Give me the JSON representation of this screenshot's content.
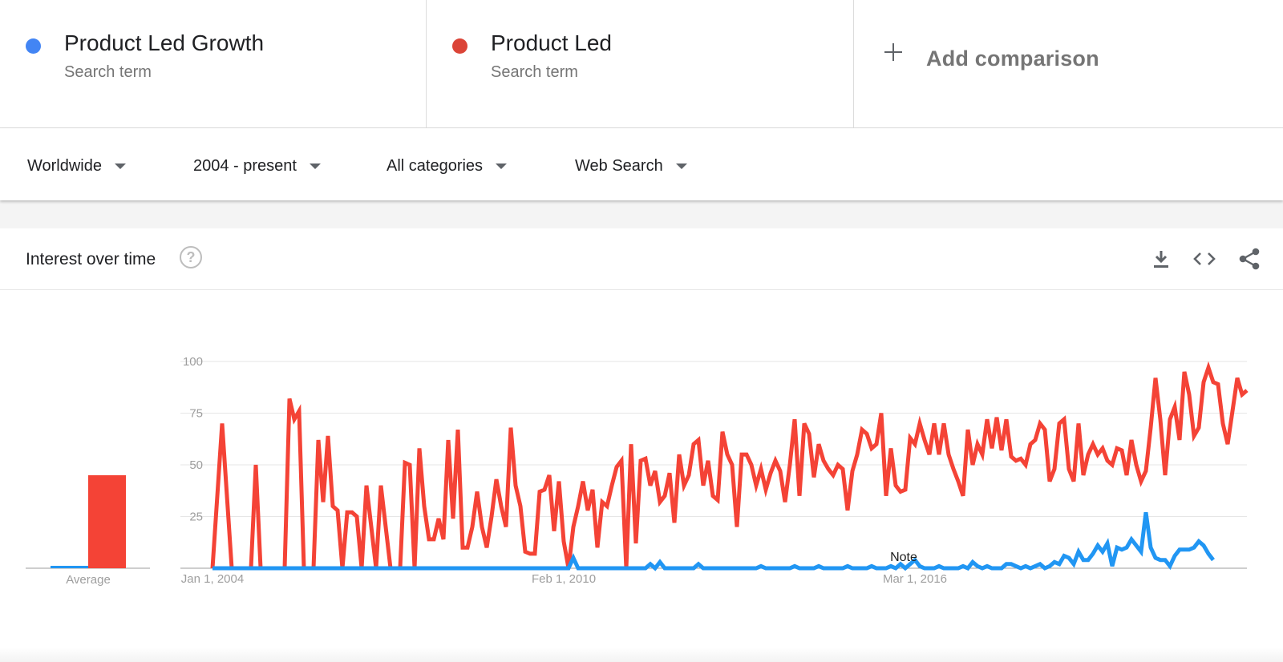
{
  "terms": [
    {
      "name": "Product Led Growth",
      "subtitle": "Search term",
      "color": "#4285F4"
    },
    {
      "name": "Product Led",
      "subtitle": "Search term",
      "color": "#DB4437"
    }
  ],
  "add_comparison": {
    "label": "Add comparison",
    "icon": "plus-icon"
  },
  "filters": {
    "region": "Worldwide",
    "time": "2004 - present",
    "category": "All categories",
    "search_type": "Web Search"
  },
  "card": {
    "title": "Interest over time",
    "help_glyph": "?",
    "actions": [
      "download-icon",
      "embed-code-icon",
      "share-icon"
    ]
  },
  "chart_data": {
    "type": "line",
    "ylim": [
      0,
      100
    ],
    "yticks": [
      "100",
      "75",
      "50",
      "25"
    ],
    "xtick_labels": [
      "Jan 1, 2004",
      "Feb 1, 2010",
      "Mar 1, 2016"
    ],
    "xticks_month_index": [
      0,
      73,
      146
    ],
    "months": 216,
    "grid": true,
    "annotation": {
      "label": "Note",
      "month_index": 144
    },
    "average": {
      "label": "Average",
      "values": [
        1,
        45
      ]
    },
    "series": [
      {
        "name": "Product Led",
        "color": "#F44336",
        "points": [
          [
            0,
            0
          ],
          [
            2,
            70
          ],
          [
            4,
            0
          ],
          [
            5,
            0
          ],
          [
            6,
            0
          ],
          [
            7,
            0
          ],
          [
            8,
            0
          ],
          [
            9,
            50
          ],
          [
            10,
            0
          ],
          [
            11,
            0
          ],
          [
            12,
            0
          ],
          [
            13,
            0
          ],
          [
            14,
            0
          ],
          [
            15,
            0
          ],
          [
            16,
            82
          ],
          [
            17,
            72
          ],
          [
            18,
            76
          ],
          [
            19,
            0
          ],
          [
            20,
            0
          ],
          [
            21,
            0
          ],
          [
            22,
            62
          ],
          [
            23,
            32
          ],
          [
            24,
            64
          ],
          [
            25,
            30
          ],
          [
            26,
            28
          ],
          [
            27,
            0
          ],
          [
            28,
            27
          ],
          [
            29,
            27
          ],
          [
            30,
            25
          ],
          [
            31,
            0
          ],
          [
            32,
            40
          ],
          [
            33,
            20
          ],
          [
            34,
            0
          ],
          [
            35,
            40
          ],
          [
            36,
            20
          ],
          [
            37,
            0
          ],
          [
            38,
            0
          ],
          [
            39,
            0
          ],
          [
            40,
            51
          ],
          [
            41,
            50
          ],
          [
            42,
            0
          ],
          [
            43,
            58
          ],
          [
            44,
            30
          ],
          [
            45,
            14
          ],
          [
            46,
            14
          ],
          [
            47,
            24
          ],
          [
            48,
            14
          ],
          [
            49,
            62
          ],
          [
            50,
            24
          ],
          [
            51,
            67
          ],
          [
            52,
            10
          ],
          [
            53,
            10
          ],
          [
            54,
            20
          ],
          [
            55,
            37
          ],
          [
            56,
            20
          ],
          [
            57,
            10
          ],
          [
            58,
            25
          ],
          [
            59,
            43
          ],
          [
            60,
            30
          ],
          [
            61,
            20
          ],
          [
            62,
            68
          ],
          [
            63,
            40
          ],
          [
            64,
            30
          ],
          [
            65,
            8
          ],
          [
            66,
            7
          ],
          [
            67,
            7
          ],
          [
            68,
            37
          ],
          [
            69,
            38
          ],
          [
            70,
            45
          ],
          [
            71,
            18
          ],
          [
            72,
            42
          ],
          [
            73,
            13
          ],
          [
            74,
            0
          ],
          [
            75,
            20
          ],
          [
            76,
            30
          ],
          [
            77,
            42
          ],
          [
            78,
            28
          ],
          [
            79,
            38
          ],
          [
            80,
            10
          ],
          [
            81,
            32
          ],
          [
            82,
            30
          ],
          [
            83,
            40
          ],
          [
            84,
            49
          ],
          [
            85,
            52
          ],
          [
            86,
            0
          ],
          [
            87,
            60
          ],
          [
            88,
            12
          ],
          [
            89,
            52
          ],
          [
            90,
            53
          ],
          [
            91,
            40
          ],
          [
            92,
            47
          ],
          [
            93,
            32
          ],
          [
            94,
            35
          ],
          [
            95,
            46
          ],
          [
            96,
            22
          ],
          [
            97,
            55
          ],
          [
            98,
            40
          ],
          [
            99,
            45
          ],
          [
            100,
            60
          ],
          [
            101,
            62
          ],
          [
            102,
            40
          ],
          [
            103,
            52
          ],
          [
            104,
            35
          ],
          [
            105,
            33
          ],
          [
            106,
            66
          ],
          [
            107,
            55
          ],
          [
            108,
            50
          ],
          [
            109,
            20
          ],
          [
            110,
            55
          ],
          [
            111,
            55
          ],
          [
            112,
            50
          ],
          [
            113,
            40
          ],
          [
            114,
            48
          ],
          [
            115,
            38
          ],
          [
            116,
            46
          ],
          [
            117,
            52
          ],
          [
            118,
            47
          ],
          [
            119,
            32
          ],
          [
            120,
            50
          ],
          [
            121,
            72
          ],
          [
            122,
            35
          ],
          [
            123,
            70
          ],
          [
            124,
            65
          ],
          [
            125,
            44
          ],
          [
            126,
            60
          ],
          [
            127,
            52
          ],
          [
            128,
            48
          ],
          [
            129,
            45
          ],
          [
            130,
            50
          ],
          [
            131,
            48
          ],
          [
            132,
            28
          ],
          [
            133,
            47
          ],
          [
            134,
            55
          ],
          [
            135,
            67
          ],
          [
            136,
            65
          ],
          [
            137,
            58
          ],
          [
            138,
            60
          ],
          [
            139,
            75
          ],
          [
            140,
            35
          ],
          [
            141,
            58
          ],
          [
            142,
            40
          ],
          [
            143,
            37
          ],
          [
            144,
            38
          ],
          [
            145,
            63
          ],
          [
            146,
            60
          ],
          [
            147,
            70
          ],
          [
            148,
            62
          ],
          [
            149,
            55
          ],
          [
            150,
            70
          ],
          [
            151,
            55
          ],
          [
            152,
            70
          ],
          [
            153,
            55
          ],
          [
            154,
            48
          ],
          [
            155,
            42
          ],
          [
            156,
            35
          ],
          [
            157,
            67
          ],
          [
            158,
            50
          ],
          [
            159,
            60
          ],
          [
            160,
            55
          ],
          [
            161,
            72
          ],
          [
            162,
            58
          ],
          [
            163,
            73
          ],
          [
            164,
            57
          ],
          [
            165,
            72
          ],
          [
            166,
            54
          ],
          [
            167,
            52
          ],
          [
            168,
            53
          ],
          [
            169,
            50
          ],
          [
            170,
            60
          ],
          [
            171,
            62
          ],
          [
            172,
            70
          ],
          [
            173,
            67
          ],
          [
            174,
            42
          ],
          [
            175,
            48
          ],
          [
            176,
            70
          ],
          [
            177,
            72
          ],
          [
            178,
            48
          ],
          [
            179,
            42
          ],
          [
            180,
            70
          ],
          [
            181,
            45
          ],
          [
            182,
            55
          ],
          [
            183,
            60
          ],
          [
            184,
            55
          ],
          [
            185,
            58
          ],
          [
            186,
            52
          ],
          [
            187,
            50
          ],
          [
            188,
            58
          ],
          [
            189,
            57
          ],
          [
            190,
            45
          ],
          [
            191,
            62
          ],
          [
            192,
            50
          ],
          [
            193,
            42
          ],
          [
            194,
            47
          ],
          [
            195,
            68
          ],
          [
            196,
            92
          ],
          [
            197,
            72
          ],
          [
            198,
            45
          ],
          [
            199,
            72
          ],
          [
            200,
            78
          ],
          [
            201,
            62
          ],
          [
            202,
            95
          ],
          [
            203,
            84
          ],
          [
            204,
            64
          ],
          [
            205,
            68
          ],
          [
            206,
            90
          ],
          [
            207,
            97
          ],
          [
            208,
            90
          ],
          [
            209,
            89
          ],
          [
            210,
            70
          ],
          [
            211,
            60
          ],
          [
            212,
            76
          ],
          [
            213,
            92
          ],
          [
            214,
            84
          ],
          [
            215,
            86
          ]
        ]
      },
      {
        "name": "Product Led Growth",
        "color": "#2196F3",
        "points": [
          [
            0,
            0
          ],
          [
            74,
            0
          ],
          [
            75,
            5
          ],
          [
            76,
            0
          ],
          [
            90,
            0
          ],
          [
            91,
            2
          ],
          [
            92,
            0
          ],
          [
            93,
            3
          ],
          [
            94,
            0
          ],
          [
            100,
            0
          ],
          [
            101,
            2
          ],
          [
            102,
            0
          ],
          [
            113,
            0
          ],
          [
            114,
            1
          ],
          [
            115,
            0
          ],
          [
            120,
            0
          ],
          [
            121,
            1
          ],
          [
            122,
            0
          ],
          [
            125,
            0
          ],
          [
            126,
            1
          ],
          [
            127,
            0
          ],
          [
            131,
            0
          ],
          [
            132,
            1
          ],
          [
            133,
            0
          ],
          [
            136,
            0
          ],
          [
            137,
            1
          ],
          [
            138,
            0
          ],
          [
            140,
            0
          ],
          [
            141,
            1
          ],
          [
            142,
            0
          ],
          [
            143,
            2
          ],
          [
            144,
            0
          ],
          [
            145,
            2
          ],
          [
            146,
            4
          ],
          [
            147,
            1
          ],
          [
            148,
            0
          ],
          [
            150,
            0
          ],
          [
            151,
            1
          ],
          [
            152,
            0
          ],
          [
            155,
            0
          ],
          [
            156,
            1
          ],
          [
            157,
            0
          ],
          [
            158,
            3
          ],
          [
            159,
            1
          ],
          [
            160,
            0
          ],
          [
            161,
            1
          ],
          [
            162,
            0
          ],
          [
            164,
            0
          ],
          [
            165,
            2
          ],
          [
            166,
            2
          ],
          [
            167,
            1
          ],
          [
            168,
            0
          ],
          [
            169,
            1
          ],
          [
            170,
            0
          ],
          [
            171,
            1
          ],
          [
            172,
            2
          ],
          [
            173,
            0
          ],
          [
            174,
            1
          ],
          [
            175,
            3
          ],
          [
            176,
            2
          ],
          [
            177,
            6
          ],
          [
            178,
            5
          ],
          [
            179,
            2
          ],
          [
            180,
            8
          ],
          [
            181,
            4
          ],
          [
            182,
            4
          ],
          [
            183,
            7
          ],
          [
            184,
            11
          ],
          [
            185,
            8
          ],
          [
            186,
            12
          ],
          [
            187,
            1
          ],
          [
            188,
            10
          ],
          [
            189,
            9
          ],
          [
            190,
            10
          ],
          [
            191,
            14
          ],
          [
            192,
            11
          ],
          [
            193,
            8
          ],
          [
            194,
            27
          ],
          [
            195,
            10
          ],
          [
            196,
            5
          ],
          [
            197,
            4
          ],
          [
            198,
            4
          ],
          [
            199,
            1
          ],
          [
            200,
            6
          ],
          [
            201,
            9
          ],
          [
            202,
            9
          ],
          [
            203,
            9
          ],
          [
            204,
            10
          ],
          [
            205,
            13
          ],
          [
            206,
            11
          ],
          [
            207,
            7
          ],
          [
            208,
            4
          ]
        ]
      }
    ]
  }
}
